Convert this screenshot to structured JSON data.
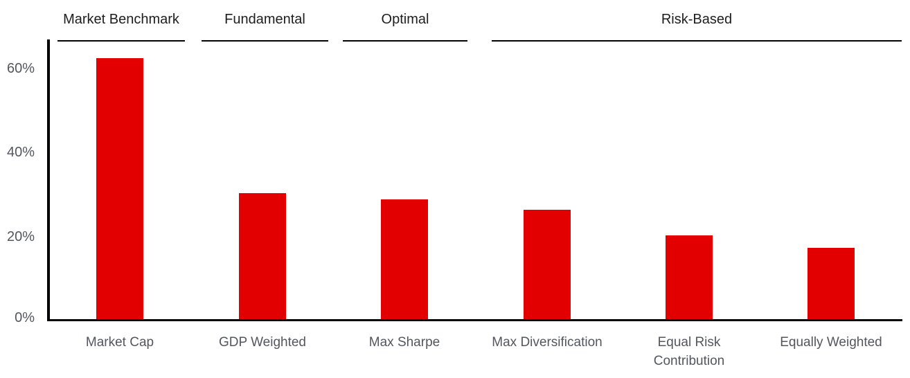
{
  "chart_data": {
    "type": "bar",
    "categories": [
      "Market Cap",
      "GDP Weighted",
      "Max Sharpe",
      "Max Diversification",
      "Equal Risk Contribution",
      "Equally Weighted"
    ],
    "values": [
      62,
      30,
      28.5,
      26,
      20,
      17
    ],
    "groups": [
      {
        "label": "Market Benchmark",
        "span": [
          0,
          0
        ]
      },
      {
        "label": "Fundamental",
        "span": [
          1,
          1
        ]
      },
      {
        "label": "Optimal",
        "span": [
          2,
          2
        ]
      },
      {
        "label": "Risk-Based",
        "span": [
          3,
          5
        ]
      }
    ],
    "title": "",
    "xlabel": "",
    "ylabel": "",
    "ytick_labels": [
      "0%",
      "20%",
      "40%",
      "60%"
    ],
    "ytick_values": [
      0,
      20,
      40,
      60
    ],
    "ylim": [
      0,
      66.8
    ],
    "grid": false,
    "legend": false,
    "colors": {
      "bar": "#e20000",
      "axis": "#000000",
      "tick_label": "#53565f",
      "header": "#1d1d1f"
    }
  }
}
